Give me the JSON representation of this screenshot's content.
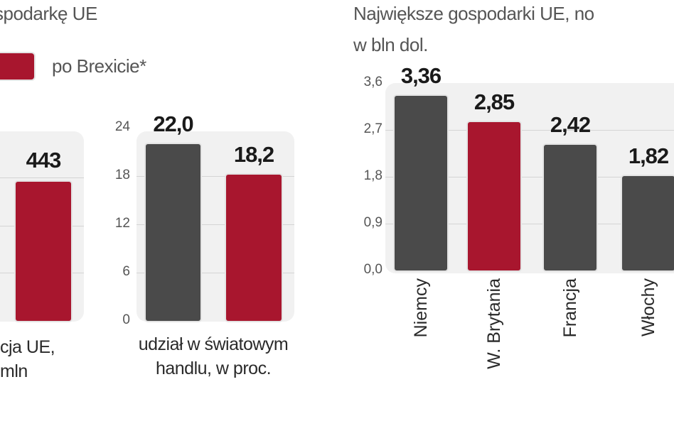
{
  "colors": {
    "before": "#4a4a4a",
    "after": "#a8162e",
    "panel": "#f1f1f1"
  },
  "header": {
    "left_title": "spodarkę UE",
    "right_title_line1": "Największe gospodarki UE, no",
    "right_title_line2": "w bln dol."
  },
  "legend": {
    "items": [
      {
        "label": "po Brexicie*",
        "color": "#a8162e"
      }
    ]
  },
  "chart_data": [
    {
      "type": "bar",
      "caption": [
        "cja UE,",
        "mln"
      ],
      "series": [
        {
          "name": "po Brexicie*",
          "values": [
            443
          ]
        }
      ],
      "value_labels": [
        "443"
      ]
    },
    {
      "type": "bar",
      "caption": [
        "udział w światowym",
        "handlu, w proc."
      ],
      "ylim": [
        0,
        24
      ],
      "yticks": [
        "0",
        "6",
        "12",
        "18",
        "24"
      ],
      "grid": true,
      "values": [
        22.0,
        18.2
      ],
      "value_labels": [
        "22,0",
        "18,2"
      ],
      "colors": [
        "#4a4a4a",
        "#a8162e"
      ]
    },
    {
      "type": "bar",
      "title": "Największe gospodarki UE, no",
      "ylabel": "w bln dol.",
      "ylim": [
        0,
        3.6
      ],
      "yticks": [
        "0,0",
        "0,9",
        "1,8",
        "2,7",
        "3,6"
      ],
      "grid": true,
      "categories": [
        "Niemcy",
        "W. Brytania",
        "Francja",
        "Włochy"
      ],
      "values": [
        3.36,
        2.85,
        2.42,
        1.82
      ],
      "value_labels": [
        "3,36",
        "2,85",
        "2,42",
        "1,82"
      ],
      "colors": [
        "#4a4a4a",
        "#a8162e",
        "#4a4a4a",
        "#4a4a4a"
      ]
    }
  ]
}
